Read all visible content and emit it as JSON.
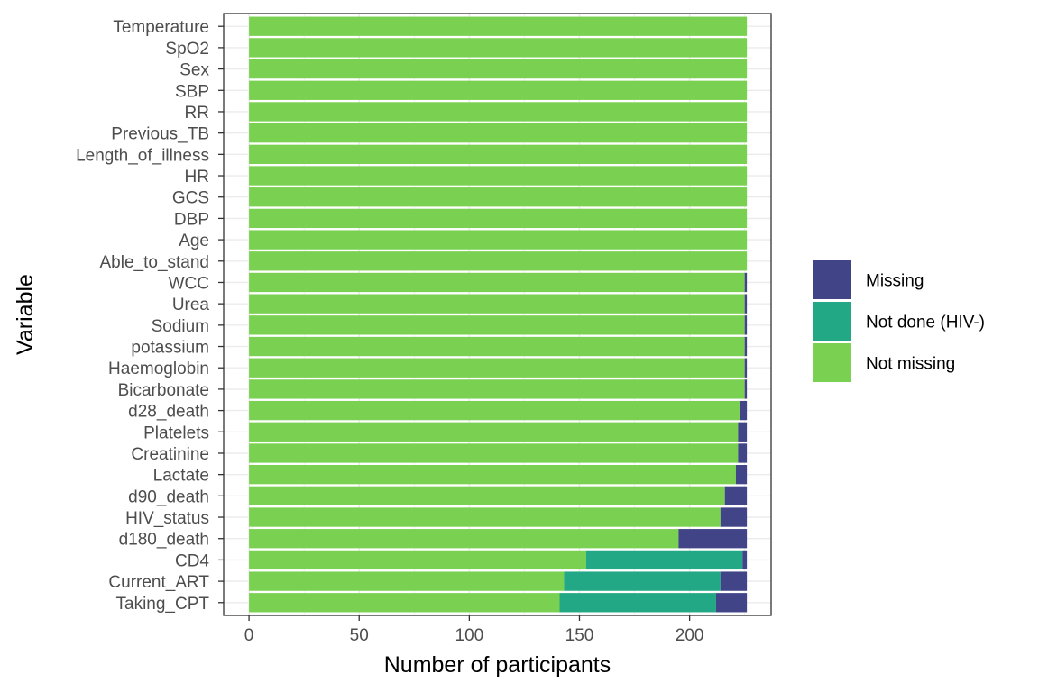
{
  "chart_data": {
    "type": "bar",
    "orientation": "horizontal",
    "stacked": true,
    "xlabel": "Number of participants",
    "ylabel": "Variable",
    "xlim": [
      -11.5,
      237
    ],
    "xticks": [
      0,
      50,
      100,
      150,
      200
    ],
    "grid": true,
    "legend_position": "right",
    "categories": [
      "Temperature",
      "SpO2",
      "Sex",
      "SBP",
      "RR",
      "Previous_TB",
      "Length_of_illness",
      "HR",
      "GCS",
      "DBP",
      "Age",
      "Able_to_stand",
      "WCC",
      "Urea",
      "Sodium",
      "potassium",
      "Haemoglobin",
      "Bicarbonate",
      "d28_death",
      "Platelets",
      "Creatinine",
      "Lactate",
      "d90_death",
      "HIV_status",
      "d180_death",
      "CD4",
      "Current_ART",
      "Taking_CPT"
    ],
    "series": [
      {
        "name": "Not missing",
        "color": "#7AD151",
        "values": [
          226,
          226,
          226,
          226,
          226,
          226,
          226,
          226,
          226,
          226,
          226,
          226,
          225,
          225,
          225,
          225,
          225,
          225,
          223,
          222,
          222,
          221,
          216,
          214,
          195,
          153,
          143,
          141
        ]
      },
      {
        "name": "Not done (HIV-)",
        "color": "#22A884",
        "values": [
          0,
          0,
          0,
          0,
          0,
          0,
          0,
          0,
          0,
          0,
          0,
          0,
          0,
          0,
          0,
          0,
          0,
          0,
          0,
          0,
          0,
          0,
          0,
          0,
          0,
          71,
          71,
          71
        ]
      },
      {
        "name": "Missing",
        "color": "#414487",
        "values": [
          0,
          0,
          0,
          0,
          0,
          0,
          0,
          0,
          0,
          0,
          0,
          0,
          1,
          1,
          1,
          1,
          1,
          1,
          3,
          4,
          4,
          5,
          10,
          12,
          31,
          2,
          12,
          14
        ]
      }
    ],
    "legend": [
      "Missing",
      "Not done (HIV-)",
      "Not missing"
    ]
  }
}
